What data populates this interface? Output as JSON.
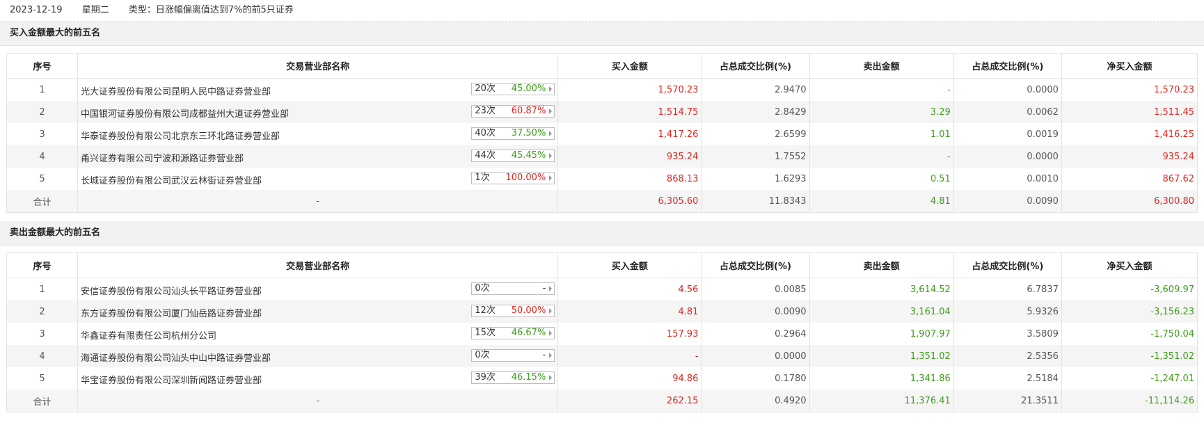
{
  "header": {
    "date": "2023-12-19",
    "weekday": "星期二",
    "type": "类型：日涨幅偏离值达到7%的前5只证券"
  },
  "columns": [
    "序号",
    "交易营业部名称",
    "买入金额",
    "占总成交比例(%)",
    "卖出金额",
    "占总成交比例(%)",
    "净买入金额"
  ],
  "buy": {
    "title": "买入金额最大的前五名",
    "rows": [
      {
        "rank": "1",
        "name": "光大证券股份有限公司昆明人民中路证券营业部",
        "count": "20次",
        "pct": "45.00%",
        "buy": "1,570.23",
        "buy_ratio": "2.9470",
        "sell": "-",
        "sell_ratio": "0.0000",
        "net": "1,570.23"
      },
      {
        "rank": "2",
        "name": "中国银河证券股份有限公司成都益州大道证券营业部",
        "count": "23次",
        "pct": "60.87%",
        "buy": "1,514.75",
        "buy_ratio": "2.8429",
        "sell": "3.29",
        "sell_ratio": "0.0062",
        "net": "1,511.45"
      },
      {
        "rank": "3",
        "name": "华泰证券股份有限公司北京东三环北路证券营业部",
        "count": "40次",
        "pct": "37.50%",
        "buy": "1,417.26",
        "buy_ratio": "2.6599",
        "sell": "1.01",
        "sell_ratio": "0.0019",
        "net": "1,416.25"
      },
      {
        "rank": "4",
        "name": "甬兴证券有限公司宁波和源路证券营业部",
        "count": "44次",
        "pct": "45.45%",
        "buy": "935.24",
        "buy_ratio": "1.7552",
        "sell": "-",
        "sell_ratio": "0.0000",
        "net": "935.24"
      },
      {
        "rank": "5",
        "name": "长城证券股份有限公司武汉云林街证券营业部",
        "count": "1次",
        "pct": "100.00%",
        "buy": "868.13",
        "buy_ratio": "1.6293",
        "sell": "0.51",
        "sell_ratio": "0.0010",
        "net": "867.62"
      }
    ],
    "total": {
      "label": "合计",
      "name": "-",
      "buy": "6,305.60",
      "buy_ratio": "11.8343",
      "sell": "4.81",
      "sell_ratio": "0.0090",
      "net": "6,300.80"
    }
  },
  "sell": {
    "title": "卖出金额最大的前五名",
    "rows": [
      {
        "rank": "1",
        "name": "安信证券股份有限公司汕头长平路证券营业部",
        "count": "0次",
        "pct": "-",
        "buy": "4.56",
        "buy_ratio": "0.0085",
        "sell": "3,614.52",
        "sell_ratio": "6.7837",
        "net": "-3,609.97"
      },
      {
        "rank": "2",
        "name": "东方证券股份有限公司厦门仙岳路证券营业部",
        "count": "12次",
        "pct": "50.00%",
        "buy": "4.81",
        "buy_ratio": "0.0090",
        "sell": "3,161.04",
        "sell_ratio": "5.9326",
        "net": "-3,156.23"
      },
      {
        "rank": "3",
        "name": "华鑫证券有限责任公司杭州分公司",
        "count": "15次",
        "pct": "46.67%",
        "buy": "157.93",
        "buy_ratio": "0.2964",
        "sell": "1,907.97",
        "sell_ratio": "3.5809",
        "net": "-1,750.04"
      },
      {
        "rank": "4",
        "name": "海通证券股份有限公司汕头中山中路证券营业部",
        "count": "0次",
        "pct": "-",
        "buy": "-",
        "buy_ratio": "0.0000",
        "sell": "1,351.02",
        "sell_ratio": "2.5356",
        "net": "-1,351.02"
      },
      {
        "rank": "5",
        "name": "华宝证券股份有限公司深圳新闻路证券营业部",
        "count": "39次",
        "pct": "46.15%",
        "buy": "94.86",
        "buy_ratio": "0.1780",
        "sell": "1,341.86",
        "sell_ratio": "2.5184",
        "net": "-1,247.01"
      }
    ],
    "total": {
      "label": "合计",
      "name": "-",
      "buy": "262.15",
      "buy_ratio": "0.4920",
      "sell": "11,376.41",
      "sell_ratio": "21.3511",
      "net": "-11,114.26"
    }
  },
  "pct_colors": {
    "45.00%": "#3d9e1a",
    "60.87%": "#e0261f",
    "37.50%": "#3d9e1a",
    "45.45%": "#3d9e1a",
    "100.00%": "#e0261f",
    "-": "#333333",
    "50.00%": "#e0261f",
    "46.67%": "#3d9e1a",
    "46.15%": "#3d9e1a"
  },
  "colors": {
    "up": "#e0261f",
    "down": "#3d9e1a"
  }
}
